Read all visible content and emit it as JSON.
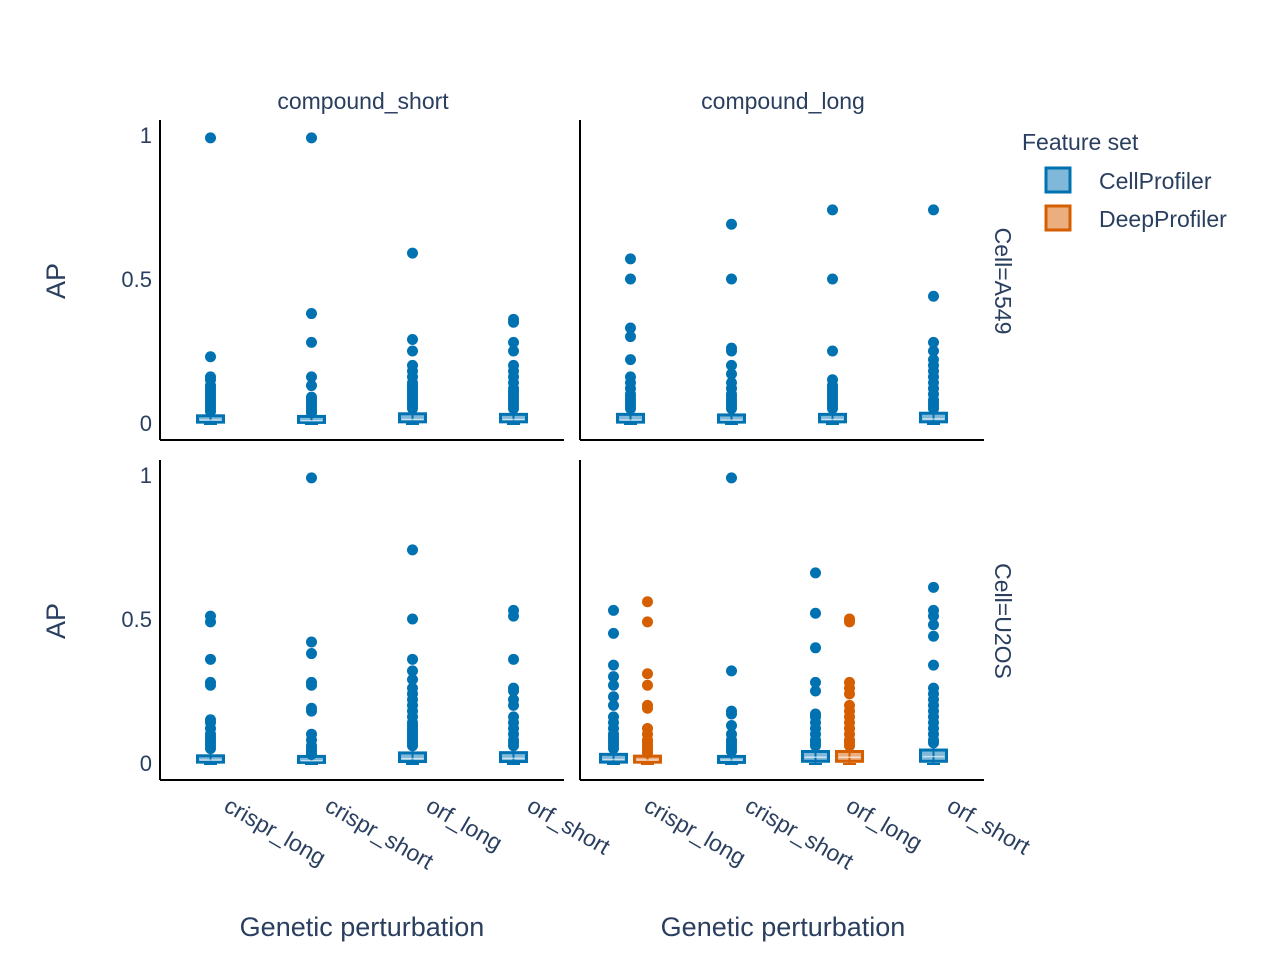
{
  "chart_data": {
    "type": "box",
    "facet_columns": [
      "compound_short",
      "compound_long"
    ],
    "facet_rows": [
      "Cell=A549",
      "Cell=U2OS"
    ],
    "categories": [
      "crispr_long",
      "crispr_short",
      "orf_long",
      "orf_short"
    ],
    "xlabel": "Genetic perturbation",
    "ylabel": "AP",
    "ylim": [
      0,
      1
    ],
    "y_ticks": [
      {
        "v": 0,
        "label": "0"
      },
      {
        "v": 0.5,
        "label": "0.5"
      },
      {
        "v": 1,
        "label": "1"
      }
    ],
    "legend": {
      "title": "Feature set",
      "placement": "top-right",
      "entries": [
        {
          "name": "CellProfiler",
          "color": "#0072B2"
        },
        {
          "name": "DeepProfiler",
          "color": "#D55E00"
        }
      ]
    },
    "panels": [
      {
        "row": "Cell=A549",
        "col": "compound_short",
        "boxes": [
          {
            "series": "CellProfiler",
            "category": "crispr_long",
            "q1": 0.003,
            "median": 0.01,
            "q3": 0.025,
            "upper": 0.035,
            "outliers": [
              0.04,
              0.05,
              0.06,
              0.07,
              0.08,
              0.09,
              0.1,
              0.11,
              0.12,
              0.13,
              0.15,
              0.16,
              0.23,
              0.99
            ]
          },
          {
            "series": "CellProfiler",
            "category": "crispr_short",
            "q1": 0.002,
            "median": 0.008,
            "q3": 0.02,
            "upper": 0.03,
            "outliers": [
              0.035,
              0.04,
              0.05,
              0.06,
              0.07,
              0.08,
              0.09,
              0.13,
              0.16,
              0.28,
              0.38,
              0.99
            ]
          },
          {
            "series": "CellProfiler",
            "category": "orf_long",
            "q1": 0.004,
            "median": 0.012,
            "q3": 0.032,
            "upper": 0.045,
            "outliers": [
              0.05,
              0.06,
              0.07,
              0.08,
              0.09,
              0.1,
              0.11,
              0.12,
              0.13,
              0.14,
              0.16,
              0.18,
              0.2,
              0.25,
              0.29,
              0.59
            ]
          },
          {
            "series": "CellProfiler",
            "category": "orf_short",
            "q1": 0.004,
            "median": 0.012,
            "q3": 0.03,
            "upper": 0.04,
            "outliers": [
              0.05,
              0.06,
              0.07,
              0.08,
              0.09,
              0.1,
              0.11,
              0.12,
              0.14,
              0.16,
              0.18,
              0.2,
              0.25,
              0.28,
              0.35,
              0.36
            ]
          }
        ]
      },
      {
        "row": "Cell=A549",
        "col": "compound_long",
        "boxes": [
          {
            "series": "CellProfiler",
            "category": "crispr_long",
            "q1": 0.003,
            "median": 0.01,
            "q3": 0.03,
            "upper": 0.04,
            "outliers": [
              0.05,
              0.06,
              0.07,
              0.08,
              0.09,
              0.1,
              0.12,
              0.14,
              0.16,
              0.22,
              0.3,
              0.33,
              0.5,
              0.57
            ]
          },
          {
            "series": "CellProfiler",
            "category": "crispr_short",
            "q1": 0.003,
            "median": 0.01,
            "q3": 0.028,
            "upper": 0.04,
            "outliers": [
              0.05,
              0.06,
              0.07,
              0.08,
              0.09,
              0.1,
              0.12,
              0.14,
              0.17,
              0.2,
              0.25,
              0.26,
              0.5,
              0.69
            ]
          },
          {
            "series": "CellProfiler",
            "category": "orf_long",
            "q1": 0.004,
            "median": 0.012,
            "q3": 0.03,
            "upper": 0.04,
            "outliers": [
              0.05,
              0.06,
              0.07,
              0.08,
              0.09,
              0.1,
              0.11,
              0.12,
              0.13,
              0.15,
              0.25,
              0.5,
              0.74
            ]
          },
          {
            "series": "CellProfiler",
            "category": "orf_short",
            "q1": 0.004,
            "median": 0.014,
            "q3": 0.034,
            "upper": 0.045,
            "outliers": [
              0.05,
              0.06,
              0.07,
              0.08,
              0.1,
              0.12,
              0.14,
              0.16,
              0.18,
              0.2,
              0.22,
              0.25,
              0.28,
              0.44,
              0.74
            ]
          }
        ]
      },
      {
        "row": "Cell=U2OS",
        "col": "compound_short",
        "boxes": [
          {
            "series": "CellProfiler",
            "category": "crispr_long",
            "q1": 0.003,
            "median": 0.01,
            "q3": 0.025,
            "upper": 0.035,
            "outliers": [
              0.05,
              0.06,
              0.07,
              0.08,
              0.09,
              0.1,
              0.12,
              0.14,
              0.15,
              0.27,
              0.28,
              0.36,
              0.49,
              0.51
            ]
          },
          {
            "series": "CellProfiler",
            "category": "crispr_short",
            "q1": 0.002,
            "median": 0.008,
            "q3": 0.018,
            "upper": 0.025,
            "outliers": [
              0.03,
              0.04,
              0.05,
              0.06,
              0.08,
              0.1,
              0.18,
              0.19,
              0.27,
              0.28,
              0.38,
              0.42,
              0.99
            ]
          },
          {
            "series": "CellProfiler",
            "category": "orf_long",
            "q1": 0.005,
            "median": 0.015,
            "q3": 0.035,
            "upper": 0.05,
            "outliers": [
              0.06,
              0.07,
              0.08,
              0.09,
              0.1,
              0.11,
              0.12,
              0.13,
              0.14,
              0.16,
              0.18,
              0.2,
              0.22,
              0.24,
              0.26,
              0.29,
              0.32,
              0.36,
              0.5,
              0.74
            ]
          },
          {
            "series": "CellProfiler",
            "category": "orf_short",
            "q1": 0.005,
            "median": 0.016,
            "q3": 0.036,
            "upper": 0.05,
            "outliers": [
              0.06,
              0.07,
              0.08,
              0.1,
              0.12,
              0.14,
              0.16,
              0.2,
              0.22,
              0.25,
              0.26,
              0.36,
              0.51,
              0.53
            ]
          }
        ]
      },
      {
        "row": "Cell=U2OS",
        "col": "compound_long",
        "boxes": [
          {
            "series": "CellProfiler",
            "category": "crispr_long",
            "q1": 0.003,
            "median": 0.012,
            "q3": 0.03,
            "upper": 0.04,
            "outliers": [
              0.05,
              0.06,
              0.07,
              0.08,
              0.09,
              0.1,
              0.12,
              0.14,
              0.16,
              0.2,
              0.23,
              0.27,
              0.3,
              0.34,
              0.45,
              0.53
            ]
          },
          {
            "series": "DeepProfiler",
            "category": "crispr_long",
            "q1": 0.003,
            "median": 0.01,
            "q3": 0.022,
            "upper": 0.03,
            "outliers": [
              0.035,
              0.04,
              0.05,
              0.06,
              0.07,
              0.08,
              0.1,
              0.12,
              0.19,
              0.2,
              0.27,
              0.31,
              0.49,
              0.56
            ]
          },
          {
            "series": "CellProfiler",
            "category": "crispr_short",
            "q1": 0.002,
            "median": 0.01,
            "q3": 0.022,
            "upper": 0.03,
            "outliers": [
              0.04,
              0.05,
              0.06,
              0.07,
              0.08,
              0.1,
              0.13,
              0.17,
              0.18,
              0.32,
              0.99
            ]
          },
          {
            "series": "CellProfiler",
            "category": "orf_long",
            "q1": 0.006,
            "median": 0.02,
            "q3": 0.04,
            "upper": 0.055,
            "outliers": [
              0.06,
              0.07,
              0.08,
              0.1,
              0.12,
              0.14,
              0.16,
              0.17,
              0.25,
              0.28,
              0.4,
              0.52,
              0.66
            ]
          },
          {
            "series": "DeepProfiler",
            "category": "orf_long",
            "q1": 0.006,
            "median": 0.02,
            "q3": 0.04,
            "upper": 0.05,
            "outliers": [
              0.06,
              0.07,
              0.08,
              0.1,
              0.12,
              0.14,
              0.16,
              0.18,
              0.2,
              0.24,
              0.26,
              0.28,
              0.49,
              0.5
            ]
          },
          {
            "series": "CellProfiler",
            "category": "orf_short",
            "q1": 0.006,
            "median": 0.022,
            "q3": 0.045,
            "upper": 0.06,
            "outliers": [
              0.07,
              0.08,
              0.1,
              0.12,
              0.14,
              0.16,
              0.18,
              0.2,
              0.22,
              0.24,
              0.26,
              0.34,
              0.44,
              0.48,
              0.51,
              0.53,
              0.61
            ]
          }
        ]
      }
    ]
  }
}
